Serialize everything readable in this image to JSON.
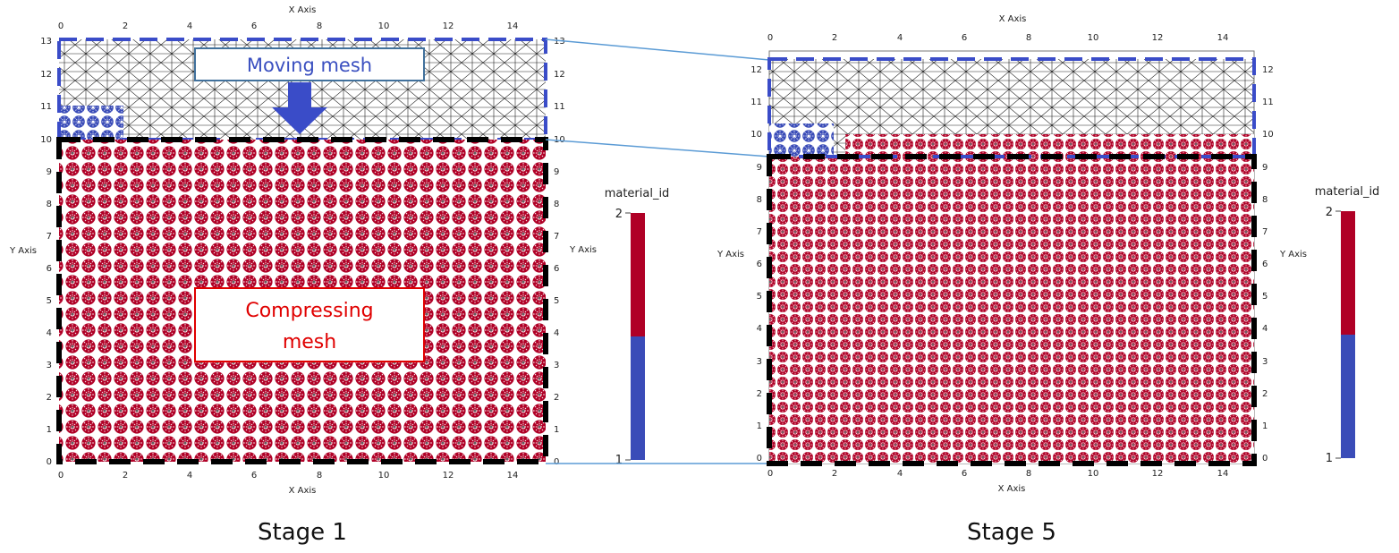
{
  "colors": {
    "material_1": "#3a4cb8",
    "material_2": "#b00026",
    "moving_border": "#3a4cc8",
    "compressing_border": "#000000",
    "connector": "#5b9bd5",
    "mesh_line": "#222222",
    "moving_label_border": "#41719c",
    "compressing_label_border": "#e00000"
  },
  "panels": [
    {
      "caption": "Stage 1",
      "x_axis_label": "X Axis",
      "y_axis_label": "Y Axis",
      "x_ticks": [
        "0",
        "2",
        "4",
        "6",
        "8",
        "10",
        "12",
        "14"
      ],
      "y_ticks_left": [
        "0",
        "1",
        "2",
        "3",
        "4",
        "5",
        "6",
        "7",
        "8",
        "9",
        "10",
        "11",
        "12",
        "13"
      ],
      "y_ticks_right": [
        "0",
        "1",
        "2",
        "3",
        "4",
        "5",
        "6",
        "7",
        "8",
        "9",
        "10",
        "11",
        "12",
        "13"
      ],
      "x_range": [
        0,
        15
      ],
      "y_range": [
        0,
        13
      ],
      "moving_region": {
        "x": [
          0,
          15
        ],
        "y": [
          10,
          13
        ]
      },
      "moving_particles": {
        "x": [
          0,
          2
        ],
        "y": [
          10,
          11
        ]
      },
      "compressing_region": {
        "x": [
          0,
          15
        ],
        "y": [
          0,
          10
        ]
      },
      "labels": {
        "moving": "Moving mesh",
        "compressing": [
          "Compressing",
          "mesh"
        ]
      }
    },
    {
      "caption": "Stage 5",
      "x_axis_label": "X Axis",
      "y_axis_label": "Y Axis",
      "x_ticks": [
        "0",
        "2",
        "4",
        "6",
        "8",
        "10",
        "12",
        "14"
      ],
      "y_ticks_left": [
        "0",
        "1",
        "2",
        "3",
        "4",
        "5",
        "6",
        "7",
        "8",
        "9",
        "10",
        "11",
        "12"
      ],
      "y_ticks_right": [
        "0",
        "1",
        "2",
        "3",
        "4",
        "5",
        "6",
        "7",
        "8",
        "9",
        "10",
        "11",
        "12"
      ],
      "x_range": [
        0,
        15
      ],
      "y_range": [
        0,
        12.5
      ],
      "moving_region": {
        "x": [
          0,
          15
        ],
        "y": [
          9.4,
          12.4
        ]
      },
      "moving_particles": {
        "x": [
          0,
          2
        ],
        "y": [
          9.4,
          10.4
        ]
      },
      "compressing_region": {
        "x": [
          0,
          15
        ],
        "y": [
          0,
          9.4
        ]
      }
    }
  ],
  "colorbars": [
    {
      "title": "material_id",
      "max_label": "2",
      "min_label": "1"
    },
    {
      "title": "material_id",
      "max_label": "2",
      "min_label": "1"
    }
  ]
}
